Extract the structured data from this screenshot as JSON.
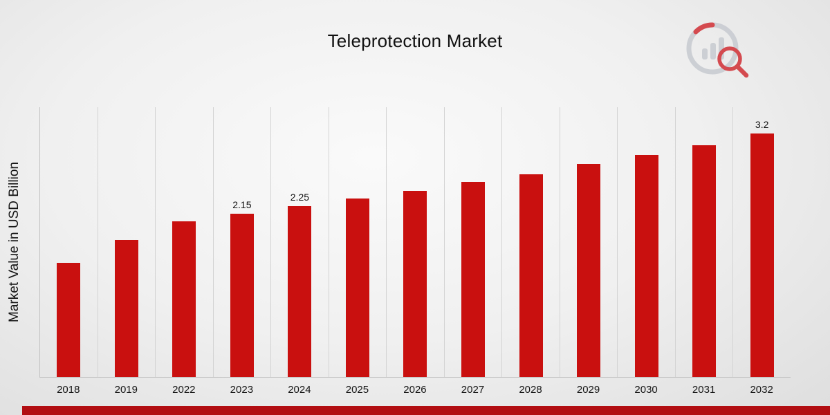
{
  "page": {
    "title": "Teleprotection Market"
  },
  "chart_data": {
    "type": "bar",
    "title": "Teleprotection Market",
    "xlabel": "",
    "ylabel": "Market Value in USD Billion",
    "unit": "USD Billion",
    "categories": [
      "2018",
      "2019",
      "2022",
      "2023",
      "2024",
      "2025",
      "2026",
      "2027",
      "2028",
      "2029",
      "2030",
      "2031",
      "2032"
    ],
    "values": [
      1.5,
      1.8,
      2.05,
      2.15,
      2.25,
      2.35,
      2.45,
      2.57,
      2.67,
      2.8,
      2.92,
      3.05,
      3.2
    ],
    "bar_labels": [
      "",
      "",
      "",
      "2.15",
      "2.25",
      "",
      "",
      "",
      "",
      "",
      "",
      "",
      "3.2"
    ],
    "ylim": [
      0,
      3.55
    ],
    "grid": "vertical-category-separators",
    "legend": "none"
  },
  "colors": {
    "bar": "#c9100f",
    "bottom_ribbon": "#b20e12",
    "gridline": "#d3d3d3",
    "logo_gray": "#c9ccd2",
    "logo_red": "#d2393f",
    "text": "#111111"
  }
}
